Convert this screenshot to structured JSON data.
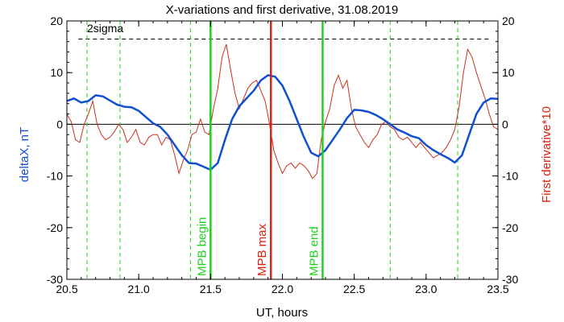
{
  "chart_data": {
    "type": "line",
    "title": "X-variations and first derivative, 31.08.2019",
    "xlabel": "UT, hours",
    "ylabel_left": "deltaX, nT",
    "ylabel_right": "First derivative*10",
    "xlim": [
      20.5,
      23.5
    ],
    "ylim_left": [
      -30,
      20
    ],
    "ylim_right": [
      -30,
      20
    ],
    "x_ticks": [
      "20.5",
      "21.0",
      "21.5",
      "22.0",
      "22.5",
      "23.0",
      "23.5"
    ],
    "x_tick_values": [
      20.5,
      21.0,
      21.5,
      22.0,
      22.5,
      23.0,
      23.5
    ],
    "y_ticks": [
      "-30",
      "-20",
      "-10",
      "0",
      "10",
      "20"
    ],
    "y_tick_values": [
      -30,
      -20,
      -10,
      0,
      10,
      20
    ],
    "sigma_label": "2sigma",
    "sigma_level": 16.5,
    "colors": {
      "deltaX": "#1050d0",
      "derivative": "#c83020",
      "mpb_boundary": "#20d020",
      "mpb_max": "#e02010",
      "reference": "#000000",
      "dashed_markers": "#20d020"
    },
    "dashed_markers_x": [
      20.64,
      20.87,
      21.36,
      22.75,
      23.22
    ],
    "vertical_lines": [
      {
        "x": 21.5,
        "label": "MPB begin",
        "kind": "boundary"
      },
      {
        "x": 21.92,
        "label": "MPB max",
        "kind": "max"
      },
      {
        "x": 22.28,
        "label": "MPB end",
        "kind": "boundary"
      }
    ],
    "series": [
      {
        "name": "deltaX, nT",
        "axis": "left",
        "x": [
          20.5,
          20.55,
          20.6,
          20.65,
          20.7,
          20.75,
          20.8,
          20.85,
          20.9,
          20.95,
          21.0,
          21.05,
          21.1,
          21.15,
          21.2,
          21.25,
          21.3,
          21.35,
          21.4,
          21.45,
          21.5,
          21.55,
          21.6,
          21.65,
          21.7,
          21.75,
          21.8,
          21.85,
          21.9,
          21.95,
          22.0,
          22.05,
          22.1,
          22.15,
          22.2,
          22.25,
          22.3,
          22.35,
          22.4,
          22.45,
          22.5,
          22.55,
          22.6,
          22.65,
          22.7,
          22.75,
          22.8,
          22.85,
          22.9,
          22.95,
          23.0,
          23.05,
          23.1,
          23.15,
          23.2,
          23.25,
          23.3,
          23.35,
          23.4,
          23.45,
          23.5
        ],
        "y": [
          4.5,
          5.0,
          4.2,
          4.5,
          5.6,
          5.4,
          4.6,
          3.8,
          3.4,
          3.3,
          2.6,
          1.4,
          0.2,
          -0.5,
          -2.0,
          -4.0,
          -6.0,
          -7.5,
          -7.6,
          -8.2,
          -8.8,
          -7.5,
          -3.0,
          1.0,
          3.5,
          5.0,
          6.5,
          8.5,
          9.5,
          9.2,
          7.5,
          4.5,
          1.0,
          -2.5,
          -5.5,
          -6.2,
          -5.0,
          -3.0,
          -1.0,
          1.2,
          2.8,
          2.7,
          2.4,
          1.8,
          1.0,
          0.0,
          -1.0,
          -1.6,
          -2.3,
          -2.7,
          -4.0,
          -5.0,
          -5.8,
          -6.5,
          -7.4,
          -6.0,
          -2.0,
          2.0,
          4.2,
          5.0,
          4.9
        ]
      },
      {
        "name": "First derivative*10",
        "axis": "right",
        "x": [
          20.5,
          20.53,
          20.56,
          20.59,
          20.62,
          20.65,
          20.68,
          20.71,
          20.74,
          20.77,
          20.8,
          20.83,
          20.86,
          20.89,
          20.92,
          20.95,
          20.98,
          21.01,
          21.04,
          21.07,
          21.1,
          21.13,
          21.16,
          21.19,
          21.22,
          21.25,
          21.28,
          21.31,
          21.34,
          21.37,
          21.4,
          21.43,
          21.46,
          21.49,
          21.52,
          21.55,
          21.58,
          21.61,
          21.64,
          21.67,
          21.7,
          21.73,
          21.76,
          21.79,
          21.82,
          21.85,
          21.88,
          21.91,
          21.94,
          21.97,
          22.0,
          22.03,
          22.06,
          22.09,
          22.12,
          22.15,
          22.18,
          22.21,
          22.24,
          22.27,
          22.3,
          22.33,
          22.36,
          22.39,
          22.42,
          22.45,
          22.48,
          22.51,
          22.54,
          22.57,
          22.6,
          22.63,
          22.66,
          22.69,
          22.72,
          22.75,
          22.78,
          22.81,
          22.84,
          22.87,
          22.9,
          22.93,
          22.96,
          22.99,
          23.02,
          23.05,
          23.08,
          23.11,
          23.14,
          23.17,
          23.2,
          23.23,
          23.26,
          23.29,
          23.32,
          23.35,
          23.38,
          23.41,
          23.44,
          23.47,
          23.5
        ],
        "y": [
          2.0,
          0.5,
          -3.0,
          -3.5,
          0.0,
          2.0,
          4.5,
          0.0,
          -2.0,
          -3.0,
          -2.5,
          -1.5,
          0.0,
          -1.0,
          -3.5,
          -2.5,
          -1.0,
          -3.5,
          -4.0,
          -2.5,
          -2.0,
          -2.0,
          -4.0,
          -2.5,
          -3.0,
          -6.0,
          -9.5,
          -7.0,
          -5.0,
          -2.0,
          -1.5,
          1.0,
          -1.5,
          -2.0,
          3.0,
          7.0,
          13.0,
          15.5,
          10.5,
          6.0,
          3.0,
          5.0,
          7.0,
          8.0,
          8.5,
          6.5,
          4.5,
          0.0,
          -5.0,
          -7.5,
          -9.5,
          -8.0,
          -7.5,
          -8.5,
          -7.5,
          -8.0,
          -9.0,
          -10.5,
          -9.5,
          -3.0,
          0.5,
          3.0,
          7.5,
          9.5,
          7.0,
          8.5,
          3.0,
          -0.5,
          -2.0,
          -3.5,
          -4.5,
          -3.0,
          -2.0,
          0.0,
          0.5,
          -0.5,
          -1.0,
          -2.5,
          -3.0,
          -2.5,
          -3.5,
          -4.5,
          -3.5,
          -4.5,
          -5.5,
          -6.5,
          -6.0,
          -5.5,
          -4.5,
          -3.0,
          -1.0,
          3.5,
          10.0,
          14.5,
          13.0,
          10.0,
          7.5,
          5.0,
          2.0,
          -0.5,
          -1.0
        ]
      }
    ]
  }
}
